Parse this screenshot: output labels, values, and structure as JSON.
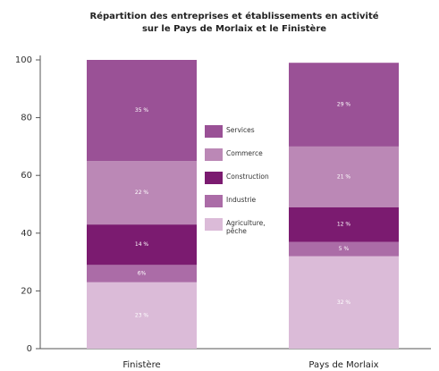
{
  "chart_data": {
    "type": "stacked_bar",
    "title": [
      "Répartition des entreprises et établissements en activité",
      "sur le Pays de Morlaix et le Finistère"
    ],
    "categories": [
      "Finistère",
      "Pays de Morlaix"
    ],
    "series": [
      {
        "name": "Agriculture, pêche",
        "color": "#dbbbd8",
        "values": [
          23,
          32
        ],
        "value_labels": [
          "23 %",
          "32 %"
        ]
      },
      {
        "name": "Industrie",
        "color": "#ab6ca7",
        "values": [
          6,
          5
        ],
        "value_labels": [
          "6%",
          "5 %"
        ]
      },
      {
        "name": "Construction",
        "color": "#7b1b70",
        "values": [
          14,
          12
        ],
        "value_labels": [
          "14 %",
          "12 %"
        ]
      },
      {
        "name": "Commerce",
        "color": "#bb88b6",
        "values": [
          22,
          21
        ],
        "value_labels": [
          "22 %",
          "21 %"
        ]
      },
      {
        "name": "Services",
        "color": "#9a5196",
        "values": [
          35,
          29
        ],
        "value_labels": [
          "35 %",
          "29 %"
        ]
      }
    ],
    "ylim": [
      0,
      100
    ],
    "yticks": [
      0,
      20,
      40,
      60,
      80,
      100
    ]
  }
}
